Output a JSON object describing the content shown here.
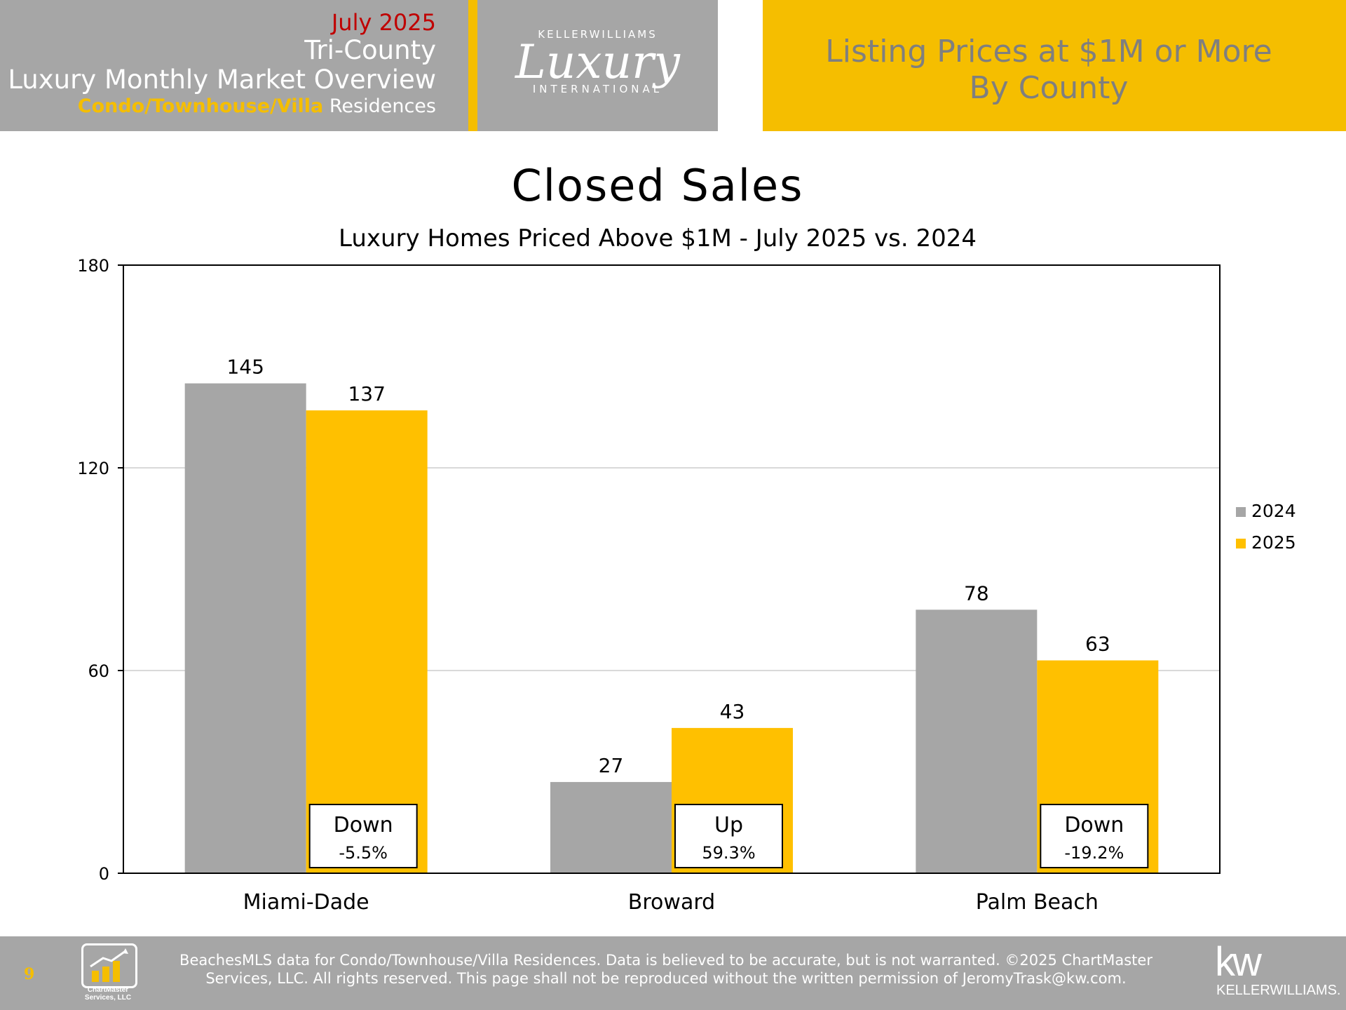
{
  "header": {
    "month": "July 2025",
    "region": "Tri-County",
    "report_title": "Luxury Monthly Market Overview",
    "property_type": "Condo/Townhouse/Villa",
    "property_suffix": "Residences",
    "logo": {
      "top": "KELLERWILLIAMS",
      "script": "Luxury",
      "bottom": "INTERNATIONAL"
    },
    "section_line1": "Listing Prices at $1M or More",
    "section_line2": "By County"
  },
  "chart_data": {
    "type": "bar",
    "title": "Closed Sales",
    "subtitle": "Luxury Homes Priced Above $1M - July 2025 vs. 2024",
    "categories": [
      "Miami-Dade",
      "Broward",
      "Palm Beach"
    ],
    "series": [
      {
        "name": "2024",
        "values": [
          145,
          27,
          78
        ],
        "color": "#a6a6a6"
      },
      {
        "name": "2025",
        "values": [
          137,
          43,
          63
        ],
        "color": "#ffc000"
      }
    ],
    "yticks": [
      "0",
      "60",
      "120",
      "180"
    ],
    "ylim": [
      0,
      180
    ],
    "grid": true,
    "legend_position": "right",
    "change_labels": [
      {
        "direction": "Down",
        "pct": "-5.5%"
      },
      {
        "direction": "Up",
        "pct": "59.3%"
      },
      {
        "direction": "Down",
        "pct": "-19.2%"
      }
    ],
    "xlabel": "",
    "ylabel": ""
  },
  "footer": {
    "page_number": "9",
    "logo_caption_line1": "ChartMaster",
    "logo_caption_line2": "Services, LLC",
    "disclaimer_line1": "BeachesMLS data for Condo/Townhouse/Villa Residences.  Data is believed to be accurate, but is not warranted.   ©2025  ChartMaster",
    "disclaimer_line2": "Services, LLC.  All rights reserved. This page shall not be reproduced without the written permission of JeromyTrask@kw.com.",
    "brand_mark": "kw",
    "brand_name": "KELLERWILLIAMS."
  }
}
